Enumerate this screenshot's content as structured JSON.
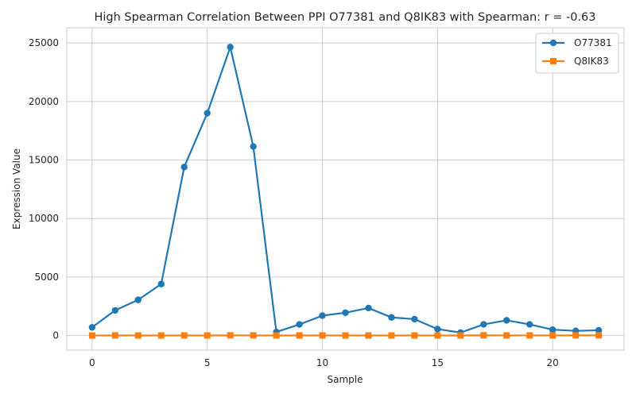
{
  "chart_data": {
    "type": "line",
    "title": "High Spearman Correlation Between PPI O77381 and Q8IK83 with Spearman: r = -0.63",
    "xlabel": "Sample",
    "ylabel": "Expression Value",
    "x": [
      0,
      1,
      2,
      3,
      4,
      5,
      6,
      7,
      8,
      9,
      10,
      11,
      12,
      13,
      14,
      15,
      16,
      17,
      18,
      19,
      20,
      21,
      22
    ],
    "xlim": [
      -1.1,
      23.1
    ],
    "ylim": [
      -1250,
      26300
    ],
    "xticks": [
      0,
      5,
      10,
      15,
      20
    ],
    "yticks": [
      0,
      5000,
      10000,
      15000,
      20000,
      25000
    ],
    "grid": true,
    "legend_position": "top-right",
    "series": [
      {
        "name": "O77381",
        "color": "#1f77b4",
        "marker": "circle",
        "values": [
          700,
          2150,
          3050,
          4400,
          14400,
          19000,
          24650,
          16150,
          300,
          950,
          1700,
          1950,
          2350,
          1550,
          1400,
          550,
          250,
          950,
          1300,
          950,
          500,
          400,
          450
        ]
      },
      {
        "name": "Q8IK83",
        "color": "#ff7f0e",
        "marker": "square",
        "values": [
          0,
          10,
          5,
          5,
          5,
          5,
          15,
          10,
          5,
          5,
          10,
          5,
          5,
          5,
          5,
          5,
          5,
          20,
          10,
          10,
          10,
          15,
          15
        ]
      }
    ]
  }
}
